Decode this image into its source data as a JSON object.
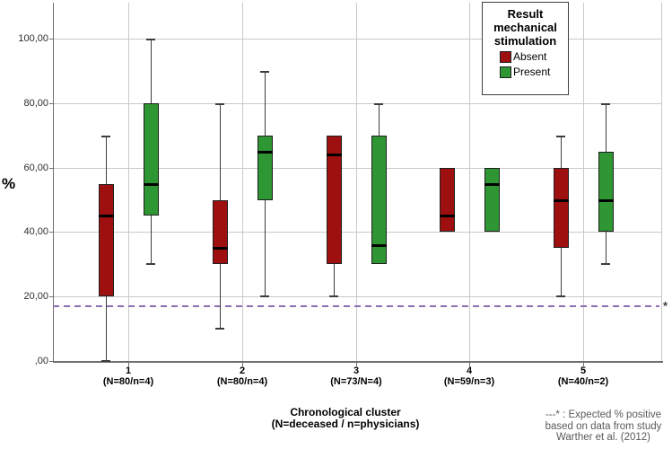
{
  "chart_data": {
    "type": "boxplot",
    "title": "",
    "ylabel": "%",
    "ylim": [
      0,
      110
    ],
    "grid": true,
    "y_ticks": [
      {
        "value": 0,
        "label": ",00"
      },
      {
        "value": 20,
        "label": "20,00"
      },
      {
        "value": 40,
        "label": "40,00"
      },
      {
        "value": 60,
        "label": "60,00"
      },
      {
        "value": 80,
        "label": "80,00"
      },
      {
        "value": 100,
        "label": "100,00"
      }
    ],
    "xlabel_lines": [
      "Chronological cluster",
      "(N=deceased / n=physicians)"
    ],
    "categories": [
      {
        "label": "1",
        "sublabel": "(N=80/n=4)"
      },
      {
        "label": "2",
        "sublabel": "(N=80/n=4)"
      },
      {
        "label": "3",
        "sublabel": "(N=73/N=4)"
      },
      {
        "label": "4",
        "sublabel": "(N=59/n=3)"
      },
      {
        "label": "5",
        "sublabel": "(N=40/n=2)"
      }
    ],
    "series": [
      {
        "name": "Absent",
        "color": "#9e1010",
        "boxes": [
          {
            "min": 0,
            "q1": 20,
            "median": 45,
            "q3": 55,
            "max": 70
          },
          {
            "min": 10,
            "q1": 30,
            "median": 35,
            "q3": 50,
            "max": 80
          },
          {
            "min": 20,
            "q1": 30,
            "median": 64,
            "q3": 70,
            "max": 70
          },
          {
            "min": 40,
            "q1": 40,
            "median": 45,
            "q3": 60,
            "max": 60
          },
          {
            "min": 20,
            "q1": 35,
            "median": 50,
            "q3": 60,
            "max": 70
          }
        ]
      },
      {
        "name": "Present",
        "color": "#2e9632",
        "boxes": [
          {
            "min": 30,
            "q1": 45,
            "median": 55,
            "q3": 80,
            "max": 100
          },
          {
            "min": 20,
            "q1": 50,
            "median": 65,
            "q3": 70,
            "max": 90
          },
          {
            "min": 30,
            "q1": 30,
            "median": 36,
            "q3": 70,
            "max": 80
          },
          {
            "min": 40,
            "q1": 40,
            "median": 55,
            "q3": 60,
            "max": 60
          },
          {
            "min": 30,
            "q1": 40,
            "median": 50,
            "q3": 65,
            "max": 80
          }
        ]
      }
    ],
    "reference_line": {
      "value": 17,
      "style": "dashed",
      "color": "#8b6fb0",
      "end_marker": "*"
    },
    "legend": {
      "position": "top-right",
      "title_lines": [
        "Result",
        "mechanical",
        "stimulation"
      ],
      "items": [
        {
          "label": "Absent",
          "color": "#9e1010"
        },
        {
          "label": "Present",
          "color": "#2e9632"
        }
      ]
    },
    "footnote_lines": [
      "---* : Expected % positive",
      "based on data from study",
      "Warther et al. (2012)"
    ]
  }
}
